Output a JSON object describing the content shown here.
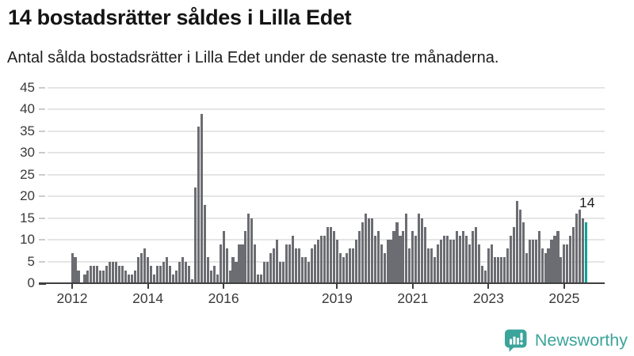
{
  "header": {
    "title": "14 bostadsrätter såldes i Lilla Edet",
    "subtitle": "Antal sålda bostadsrätter i Lilla Edet under de senaste tre månaderna."
  },
  "chart_data": {
    "type": "bar",
    "title": "14 bostadsrätter såldes i Lilla Edet",
    "subtitle": "Antal sålda bostadsrätter i Lilla Edet under de senaste tre månaderna.",
    "xlabel": "",
    "ylabel": "",
    "frequency": "monthly",
    "x_start": "2012-01",
    "x_end": "2025-08",
    "values_by_year": {
      "2012": [
        7,
        6,
        3,
        0,
        2,
        3,
        4,
        4,
        4,
        3,
        3,
        4
      ],
      "2013": [
        5,
        5,
        5,
        4,
        4,
        3,
        2,
        2,
        3,
        6,
        7,
        8
      ],
      "2014": [
        6,
        4,
        2,
        4,
        4,
        5,
        6,
        4,
        2,
        3,
        5,
        6
      ],
      "2015": [
        5,
        4,
        1,
        22,
        36,
        39,
        18,
        6,
        3,
        4,
        2,
        9
      ],
      "2016": [
        12,
        8,
        3,
        6,
        5,
        9,
        9,
        12,
        16,
        15,
        9,
        2
      ],
      "2017": [
        2,
        5,
        5,
        7,
        8,
        10,
        5,
        5,
        9,
        9,
        11,
        8
      ],
      "2018": [
        8,
        6,
        6,
        5,
        8,
        9,
        10,
        11,
        11,
        13,
        13,
        12
      ],
      "2019": [
        10,
        7,
        6,
        7,
        8,
        8,
        10,
        12,
        14,
        16,
        15,
        15
      ],
      "2020": [
        11,
        12,
        9,
        7,
        10,
        10,
        12,
        14,
        11,
        12,
        16,
        8
      ],
      "2021": [
        12,
        11,
        16,
        15,
        13,
        8,
        8,
        6,
        9,
        10,
        11,
        11
      ],
      "2022": [
        10,
        10,
        12,
        11,
        12,
        11,
        9,
        12,
        13,
        9,
        4,
        3
      ],
      "2023": [
        8,
        9,
        6,
        6,
        6,
        6,
        8,
        11,
        13,
        19,
        17,
        14
      ],
      "2024": [
        7,
        10,
        10,
        10,
        12,
        8,
        7,
        8,
        10,
        11,
        12,
        6
      ],
      "2025": [
        9,
        9,
        11,
        13,
        16,
        17,
        15,
        14
      ]
    },
    "highlight_last_bar": true,
    "annotation": {
      "text": "14"
    },
    "ylim": [
      0,
      45
    ],
    "yticks": [
      0,
      5,
      10,
      15,
      20,
      25,
      30,
      35,
      40,
      45
    ],
    "xticks": [
      2012,
      2014,
      2016,
      2019,
      2021,
      2023,
      2025
    ],
    "grid": true,
    "legend": "none",
    "colors": {
      "bar": "#6c6d72",
      "highlight": "#00a59b",
      "gridline": "#e5e5e5",
      "axis": "#3f3f3f"
    }
  },
  "footer": {
    "brand": "Newsworthy",
    "brand_color": "#3ba49b"
  }
}
